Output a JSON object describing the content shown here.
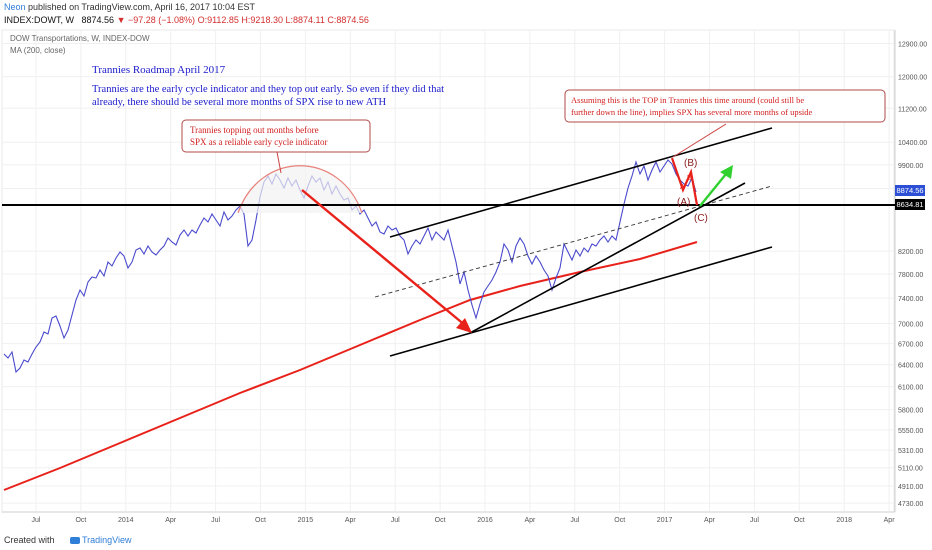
{
  "header": {
    "author": "Neon",
    "published": "published on TradingView.com, April 16, 2017 10:04 EST",
    "symbol": "INDEX:DOWT, W",
    "last": "8874.56",
    "change": "▼ −97.28 (−1.08%)",
    "ohlc": "O:9112.85 H:9218.30 L:8874.11 C:8874.56"
  },
  "pane": {
    "title": "DOW Transportations, W, INDEX-DOW",
    "ma_label": "MA (200, close)"
  },
  "annotations": {
    "roadmap_title": "Trannies Roadmap April 2017",
    "roadmap_line1": "Trannies are the early cycle indicator and they top out early. So even if they did that",
    "roadmap_line2": "already, there should be several more months of SPX rise to new ATH",
    "callout_left_line1": "Trannies topping out months before",
    "callout_left_line2": "SPX as a reliable early cycle indicator",
    "callout_right_line1": "Assuming this is the TOP in Trannies this time around (could still be",
    "callout_right_line2": "further down the line), implies SPX has several more months of upside",
    "wave_a": "(A)",
    "wave_b": "(B)",
    "wave_c": "(C)",
    "wave_a_small": "A",
    "wave_b_small": "B"
  },
  "price_tags": {
    "last": "8874.56",
    "level": "8634.81"
  },
  "footer": {
    "created_with": "Created with",
    "brand": "TradingView"
  },
  "colors": {
    "price_line": "#4a4acd",
    "ma_line": "#e8221a",
    "arrow_red": "#e8221a",
    "arrow_green": "#2fd12f",
    "channel": "#000000",
    "annotation_blue": "#1a1acc",
    "annotation_red": "#d21e1e",
    "last_tag": "#2c4fd6",
    "level_tag": "#000000"
  },
  "chart_data": {
    "type": "line",
    "title": "DOW Transportations, W, INDEX-DOW",
    "xlabel": "",
    "ylabel": "",
    "y_scale": "log",
    "ylim": [
      4700,
      13000
    ],
    "x_tick_labels": [
      "Jul",
      "Oct",
      "2014",
      "Apr",
      "Jul",
      "Oct",
      "2015",
      "Apr",
      "Jul",
      "Oct",
      "2016",
      "Apr",
      "Jul",
      "Oct",
      "2017",
      "Apr",
      "Jul",
      "Oct",
      "2018",
      "Apr"
    ],
    "y_tick_labels": [
      "12900.00",
      "12000.00",
      "11200.00",
      "10400.00",
      "9900.00",
      "9400.00",
      "8634.81",
      "8200.00",
      "7800.00",
      "7400.00",
      "7000.00",
      "6700.00",
      "6400.00",
      "6100.00",
      "5800.00",
      "5550.00",
      "5310.00",
      "5110.00",
      "4910.00",
      "4730.00"
    ],
    "y_ticks": [
      12900,
      12000,
      11200,
      10400,
      9900,
      9400,
      8634.81,
      8200,
      7800,
      7400,
      7000,
      6700,
      6400,
      6100,
      5800,
      5550,
      5310,
      5110,
      4910,
      4730
    ],
    "series": [
      {
        "name": "DOW Transportations",
        "x": [
          "2013-06",
          "2013-07",
          "2013-08",
          "2013-09",
          "2013-10",
          "2013-11",
          "2013-12",
          "2014-01",
          "2014-02",
          "2014-03",
          "2014-04",
          "2014-05",
          "2014-06",
          "2014-07",
          "2014-08",
          "2014-09",
          "2014-10",
          "2014-11",
          "2014-12",
          "2015-01",
          "2015-02",
          "2015-03",
          "2015-04",
          "2015-05",
          "2015-06",
          "2015-07",
          "2015-08",
          "2015-09",
          "2015-10",
          "2015-11",
          "2015-12",
          "2016-01",
          "2016-02",
          "2016-03",
          "2016-04",
          "2016-05",
          "2016-06",
          "2016-07",
          "2016-08",
          "2016-09",
          "2016-10",
          "2016-11",
          "2016-12",
          "2017-01",
          "2017-02",
          "2017-03",
          "2017-04"
        ],
        "values": [
          6300,
          6350,
          6500,
          6700,
          7000,
          7200,
          7400,
          7250,
          7300,
          7550,
          7800,
          7900,
          8200,
          8150,
          8350,
          8500,
          8200,
          9000,
          9100,
          8800,
          9050,
          8900,
          8900,
          8700,
          8500,
          8200,
          8100,
          8000,
          8200,
          8000,
          7700,
          6800,
          7100,
          7800,
          7900,
          7600,
          7500,
          7900,
          7950,
          7800,
          7900,
          8700,
          9200,
          9200,
          9400,
          9200,
          8874.56
        ]
      },
      {
        "name": "MA (200, close)",
        "x": [
          "2013-06",
          "2013-09",
          "2013-12",
          "2014-03",
          "2014-06",
          "2014-09",
          "2014-12",
          "2015-03",
          "2015-06",
          "2015-09",
          "2015-12",
          "2016-03",
          "2016-06",
          "2016-09",
          "2016-12",
          "2017-04"
        ],
        "values": [
          4900,
          5050,
          5200,
          5380,
          5580,
          5800,
          6020,
          6250,
          6470,
          6700,
          6900,
          7100,
          7300,
          7500,
          7700,
          8000
        ]
      }
    ],
    "horizontal_level": 8634.81,
    "grid": true,
    "legend": "none"
  }
}
